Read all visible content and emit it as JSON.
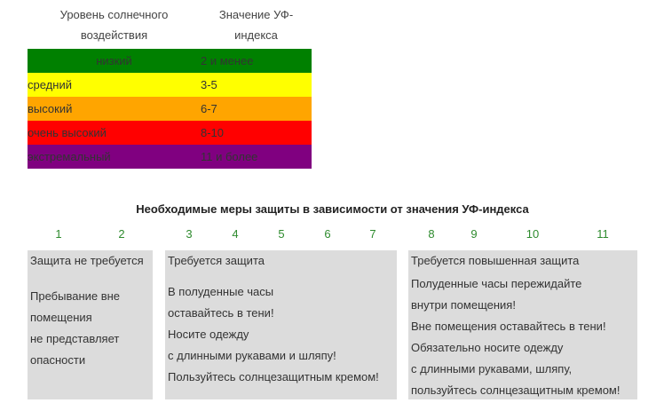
{
  "uv_table": {
    "headers": [
      "Уровень солнечного воздействия",
      "Значение УФ-индекса"
    ],
    "header_lines": [
      [
        "Уровень солнечного",
        "воздействия"
      ],
      [
        "Значение УФ-",
        "индекса"
      ]
    ],
    "rows": [
      {
        "level": "низкий",
        "value": "2 и менее",
        "color": "#008000"
      },
      {
        "level": "средний",
        "value": "3-5",
        "color": "#ffff00"
      },
      {
        "level": "высокий",
        "value": "6-7",
        "color": "#ffa500"
      },
      {
        "level": "очень высокий",
        "value": "8-10",
        "color": "#ff0000"
      },
      {
        "level": "экстремальный",
        "value": "11 и более",
        "color": "#800080"
      }
    ]
  },
  "protection": {
    "heading": "Необходимые меры защиты в зависимости от значения УФ-индекса",
    "index_numbers": [
      "1",
      "2",
      "3",
      "4",
      "5",
      "6",
      "7",
      "8",
      "9",
      "10",
      "11"
    ],
    "number_color": "#2e8b2e",
    "box_color": "#dcdcdc",
    "boxes": [
      {
        "title": "Защита не требуется",
        "lines": [
          "Пребывание вне",
          "помещения",
          "не представляет",
          "опасности"
        ]
      },
      {
        "title": "Требуется защита",
        "lines": [
          "В полуденные часы",
          "оставайтесь в тени!",
          "Носите одежду",
          "с длинными рукавами и шляпу!",
          "Пользуйтесь солнцезащитным кремом!"
        ]
      },
      {
        "title": "Требуется повышенная защита",
        "lines": [
          "Полуденные часы пережидайте",
          "внутри помещения!",
          "Вне помещения оставайтесь в тени!",
          "Обязательно носите одежду",
          "с длинными рукавами, шляпу,",
          "пользуйтесь солнцезащитным кремом!"
        ]
      }
    ]
  }
}
